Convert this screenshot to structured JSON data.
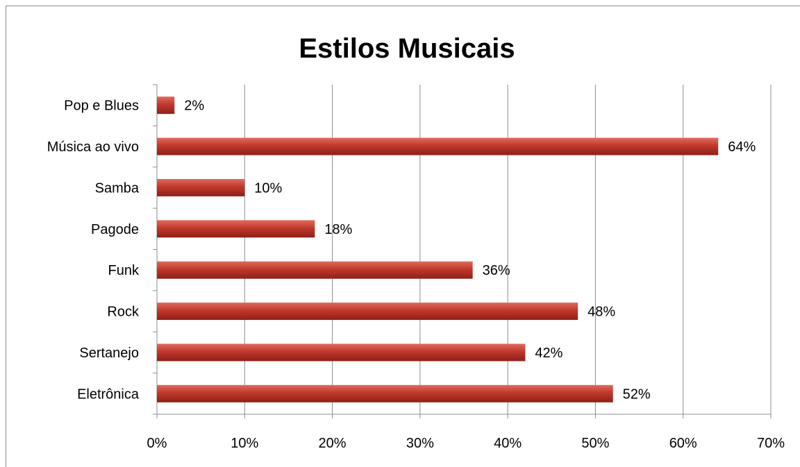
{
  "chart_data": {
    "type": "bar",
    "orientation": "horizontal",
    "title": "Estilos Musicais",
    "categories": [
      "Pop e Blues",
      "Música ao vivo",
      "Samba",
      "Pagode",
      "Funk",
      "Rock",
      "Sertanejo",
      "Eletrônica"
    ],
    "values": [
      2,
      64,
      10,
      18,
      36,
      48,
      42,
      52
    ],
    "data_labels": [
      "2%",
      "64%",
      "10%",
      "18%",
      "36%",
      "48%",
      "42%",
      "52%"
    ],
    "xlim": [
      0,
      70
    ],
    "x_ticks": [
      0,
      10,
      20,
      30,
      40,
      50,
      60,
      70
    ],
    "x_tick_labels": [
      "0%",
      "10%",
      "20%",
      "30%",
      "40%",
      "50%",
      "60%",
      "70%"
    ],
    "xlabel": "",
    "ylabel": "",
    "grid": "vertical",
    "legend": "none",
    "bar_color": "#c0392b"
  }
}
